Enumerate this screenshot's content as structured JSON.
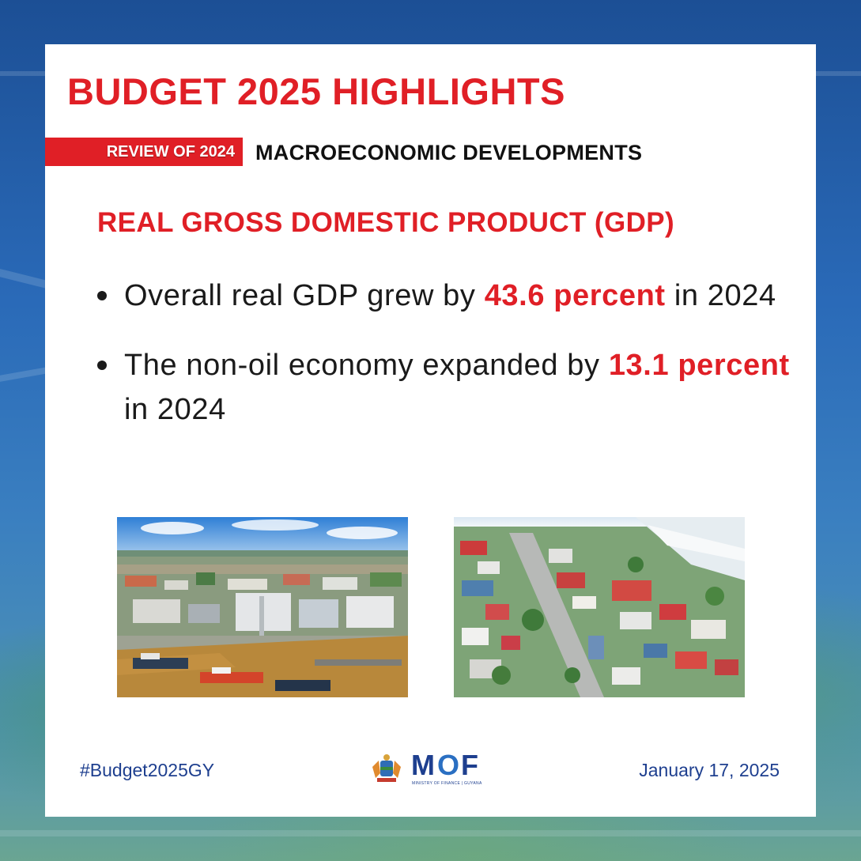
{
  "header": {
    "title": "BUDGET 2025 HIGHLIGHTS",
    "review_tag": "REVIEW OF 2024",
    "section": "MACROECONOMIC DEVELOPMENTS"
  },
  "subheading": "REAL GROSS DOMESTIC PRODUCT (GDP)",
  "bullets": [
    {
      "before": "Overall real GDP grew by ",
      "highlight": "43.6 percent",
      "after": " in 2024"
    },
    {
      "before": "The non-oil economy expanded by ",
      "highlight": "13.1 percent",
      "after": " in 2024"
    }
  ],
  "photos": [
    {
      "icon": "aerial-port-photo"
    },
    {
      "icon": "aerial-city-photo"
    }
  ],
  "footer": {
    "hashtag": "#Budget2025GY",
    "date": "January 17, 2025",
    "logo": {
      "m": "M",
      "o": "O",
      "f": "F",
      "subtitle": "MINISTRY OF FINANCE | GUYANA"
    }
  },
  "colors": {
    "accent_red": "#e01f26",
    "navy": "#1e3f8f",
    "text": "#1a1a1a",
    "background_blue": "#2a6ab8"
  }
}
